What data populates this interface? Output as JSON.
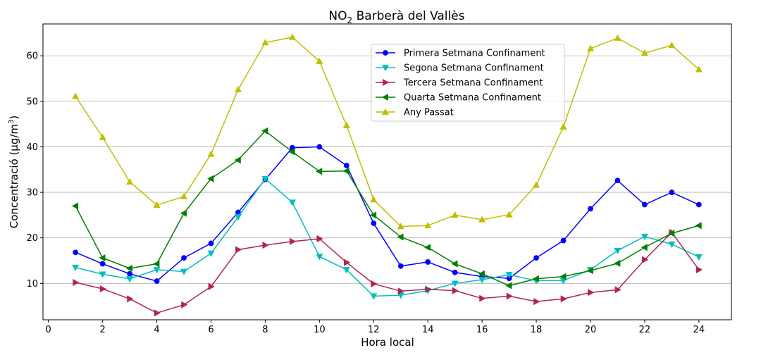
{
  "chart_data": {
    "type": "line",
    "title": "NO",
    "title_subscript": "2",
    "title_rest": " Barberà del Vallès",
    "xlabel": "Hora local",
    "ylabel": "Concentració (µg/m",
    "ylabel_superscript": "3",
    "ylabel_end": ")",
    "xlim": [
      -0.2,
      25.2
    ],
    "ylim": [
      2,
      67
    ],
    "xticks": [
      "0",
      "2",
      "4",
      "6",
      "8",
      "10",
      "12",
      "14",
      "16",
      "18",
      "20",
      "22",
      "24"
    ],
    "yticks": [
      "10",
      "20",
      "30",
      "40",
      "50",
      "60"
    ],
    "grid": "horizontal",
    "legend_position": "upper-center",
    "x": [
      1,
      2,
      3,
      4,
      5,
      6,
      7,
      8,
      9,
      10,
      11,
      12,
      13,
      14,
      15,
      16,
      17,
      18,
      19,
      20,
      21,
      22,
      23,
      24
    ],
    "series": [
      {
        "name": "Primera Setmana Confinament",
        "color": "#0000ff",
        "marker": "circle",
        "values": [
          16.8,
          14.3,
          12.1,
          10.5,
          15.6,
          18.8,
          25.6,
          32.8,
          39.8,
          40.0,
          35.9,
          23.2,
          13.8,
          14.7,
          12.4,
          11.5,
          11.1,
          15.6,
          19.4,
          26.4,
          32.6,
          27.3,
          30.0,
          27.3
        ]
      },
      {
        "name": "Segona Setmana Confinament",
        "color": "#00bfbf",
        "marker": "triangle-down",
        "values": [
          13.5,
          12.0,
          11.0,
          13.0,
          12.6,
          16.6,
          24.6,
          33.0,
          27.8,
          15.9,
          13.0,
          7.2,
          7.4,
          8.4,
          10.0,
          10.8,
          11.9,
          10.6,
          10.6,
          13.0,
          17.2,
          20.3,
          18.6,
          15.8
        ]
      },
      {
        "name": "Tercera Setmana Confinament",
        "color": "#b0254f",
        "marker": "triangle-right",
        "values": [
          10.2,
          8.8,
          6.6,
          3.5,
          5.3,
          9.3,
          17.4,
          18.4,
          19.2,
          19.8,
          14.6,
          9.9,
          8.3,
          8.7,
          8.4,
          6.7,
          7.2,
          6.0,
          6.6,
          8.0,
          8.6,
          15.2,
          21.2,
          13.0
        ]
      },
      {
        "name": "Quarta Setmana Confinament",
        "color": "#008000",
        "marker": "triangle-left",
        "values": [
          27.0,
          15.6,
          13.3,
          14.3,
          25.4,
          33.0,
          37.1,
          43.5,
          38.9,
          34.6,
          34.7,
          25.0,
          20.2,
          17.9,
          14.3,
          12.1,
          9.5,
          11.0,
          11.5,
          12.8,
          14.4,
          17.9,
          21.0,
          22.7
        ]
      },
      {
        "name": "Any Passat",
        "color": "#bfbf00",
        "marker": "triangle-up",
        "values": [
          51.1,
          42.1,
          32.3,
          27.2,
          29.1,
          38.4,
          52.6,
          62.9,
          64.1,
          58.8,
          44.7,
          28.4,
          22.5,
          22.7,
          25.0,
          24.0,
          25.1,
          31.6,
          44.4,
          61.6,
          63.9,
          60.6,
          62.3,
          57.0
        ]
      }
    ]
  }
}
